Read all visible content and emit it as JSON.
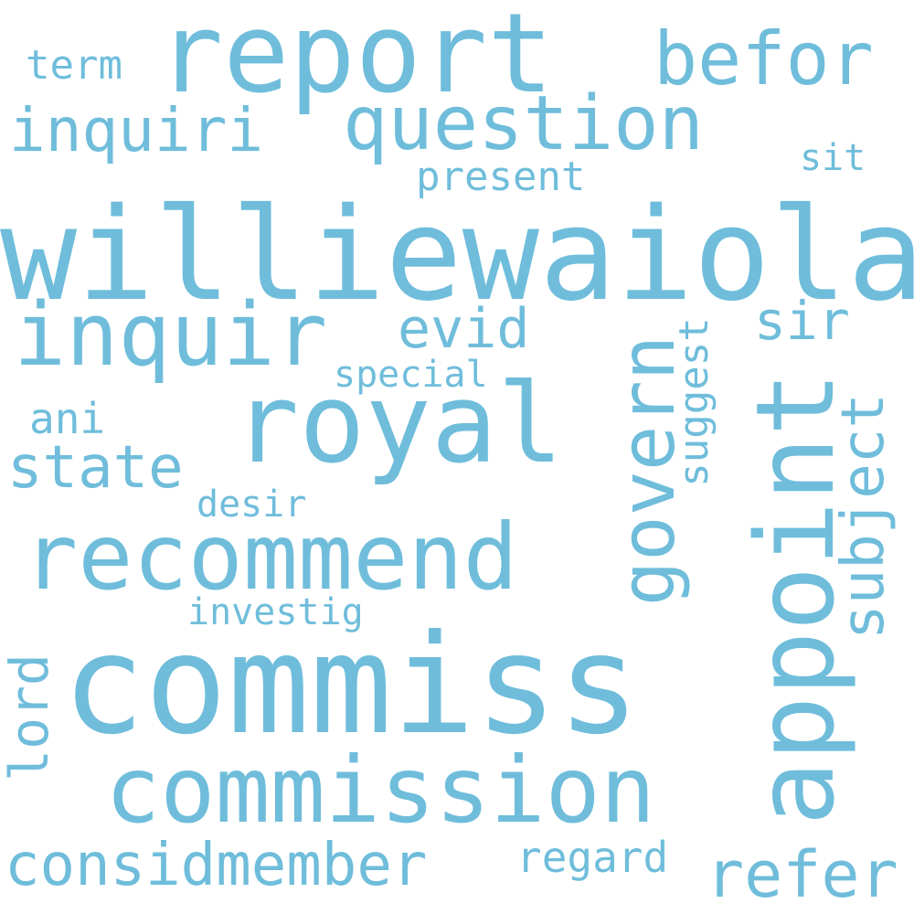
{
  "color": "#6fbddb",
  "words": {
    "williewaiola": "williewaiola",
    "commiss": "commiss",
    "report": "report",
    "royal": "royal",
    "recommend": "recommend",
    "commission": "commission",
    "appoint": "appoint",
    "inquir": "inquir",
    "question": "question",
    "govern": "govern",
    "befor": "befor",
    "inquiri": "inquiri",
    "considmember": "considmember",
    "refer": "refer",
    "subject": "subject",
    "state": "state",
    "evid": "evid",
    "lord": "lord",
    "regard": "regard",
    "sir": "sir",
    "present": "present",
    "term": "term",
    "special": "special",
    "suggest": "suggest",
    "sit": "sit",
    "ani": "ani",
    "desir": "desir",
    "investig": "investig"
  }
}
